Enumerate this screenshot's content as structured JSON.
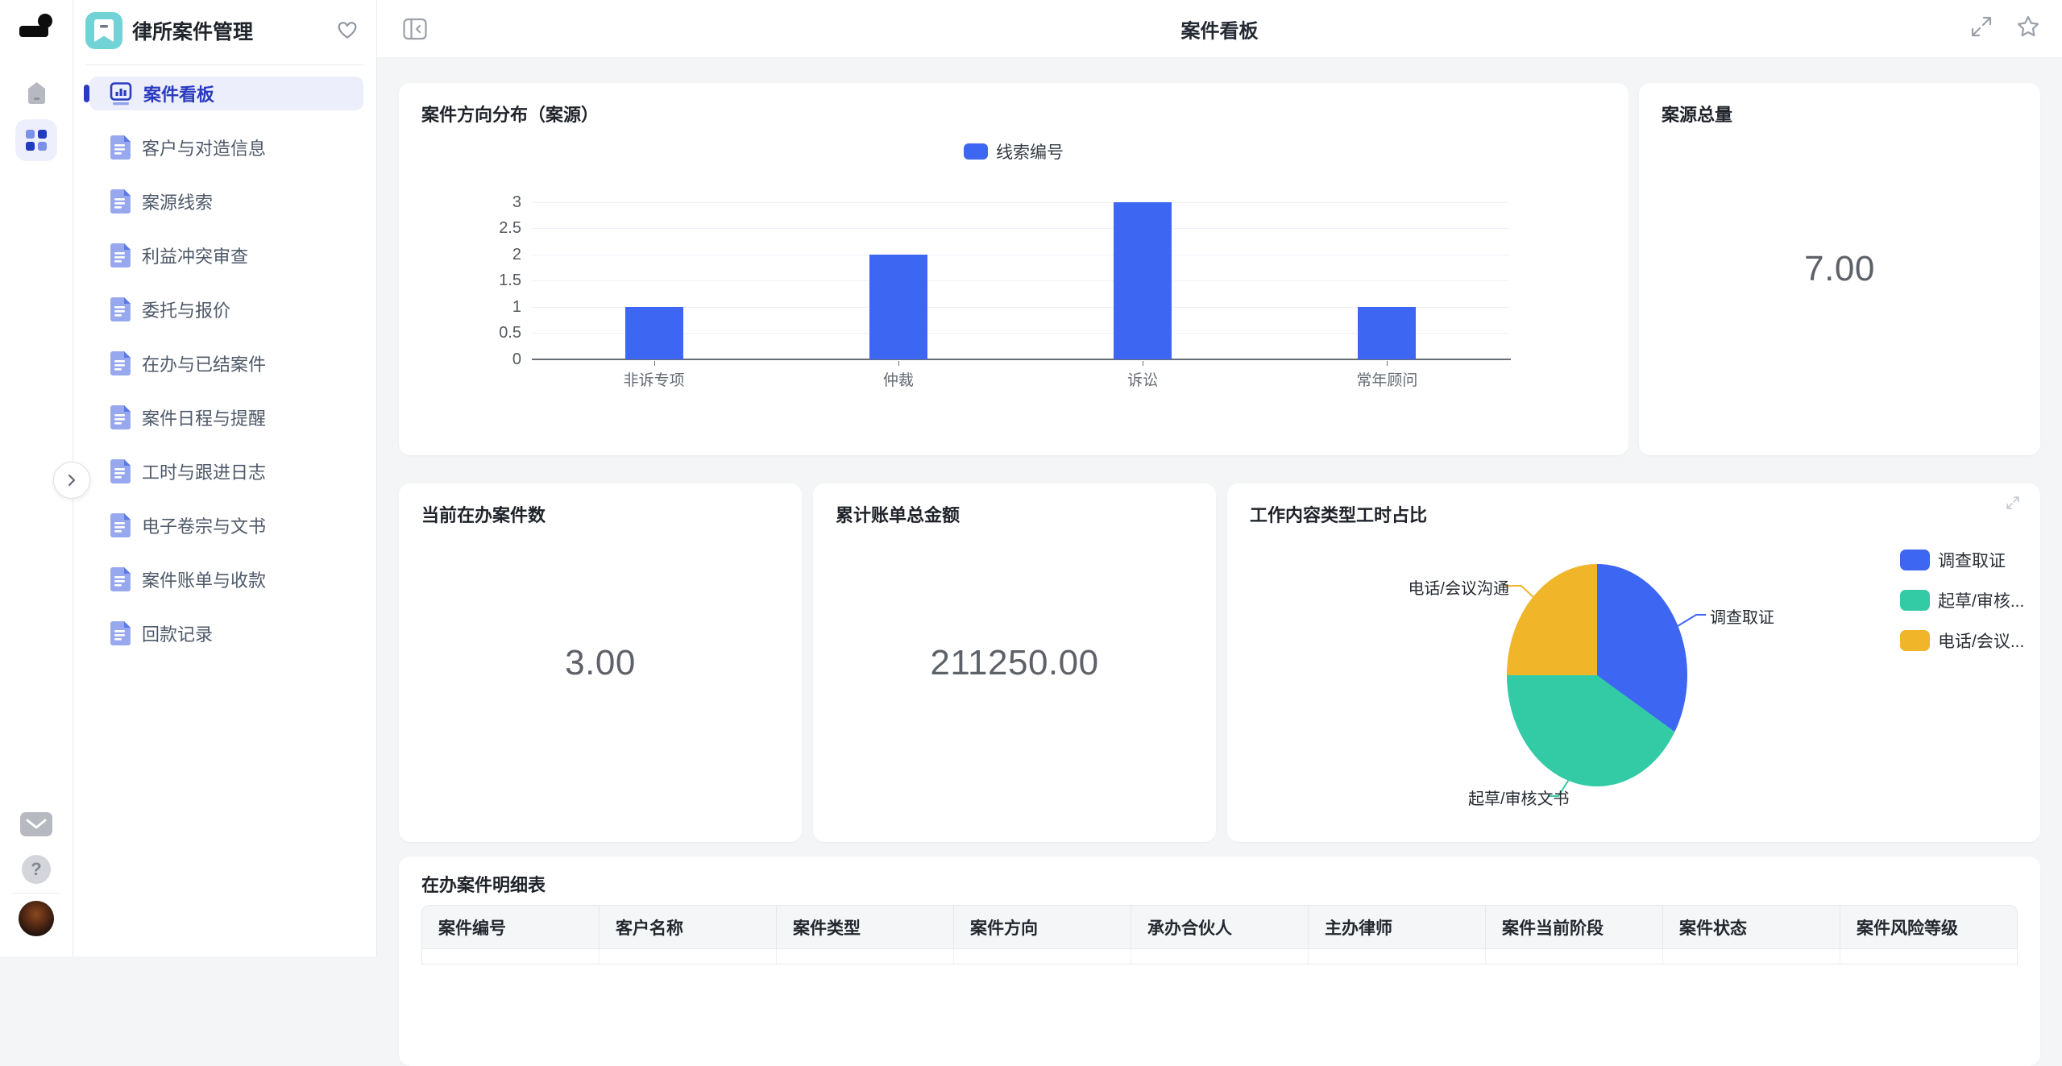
{
  "topbar": {
    "title": "案件看板",
    "icons": [
      "panel-collapse-icon",
      "fullscreen-icon",
      "star-icon"
    ]
  },
  "rail": {
    "icons": [
      "app-logo",
      "home-icon",
      "apps-grid-icon",
      "mail-icon",
      "help-icon",
      "avatar"
    ]
  },
  "sidebar": {
    "app_title": "律所案件管理",
    "header_icons": [
      "book-tag-icon",
      "heart-icon"
    ],
    "items": [
      {
        "label": "案件看板",
        "active": true,
        "icon": "dashboard-icon"
      },
      {
        "label": "客户与对造信息",
        "active": false,
        "icon": "doc-icon"
      },
      {
        "label": "案源线索",
        "active": false,
        "icon": "doc-icon"
      },
      {
        "label": "利益冲突审查",
        "active": false,
        "icon": "doc-icon"
      },
      {
        "label": "委托与报价",
        "active": false,
        "icon": "doc-icon"
      },
      {
        "label": "在办与已结案件",
        "active": false,
        "icon": "doc-icon"
      },
      {
        "label": "案件日程与提醒",
        "active": false,
        "icon": "doc-icon"
      },
      {
        "label": "工时与跟进日志",
        "active": false,
        "icon": "doc-icon"
      },
      {
        "label": "电子卷宗与文书",
        "active": false,
        "icon": "doc-icon"
      },
      {
        "label": "案件账单与收款",
        "active": false,
        "icon": "doc-icon"
      },
      {
        "label": "回款记录",
        "active": false,
        "icon": "doc-icon"
      }
    ]
  },
  "kpis": {
    "total_sources": {
      "title": "案源总量",
      "value": "7.00"
    },
    "active_cases": {
      "title": "当前在办案件数",
      "value": "3.00"
    },
    "billing_total": {
      "title": "累计账单总金额",
      "value": "211250.00"
    }
  },
  "bar_card": {
    "title": "案件方向分布（案源）",
    "yticks": [
      "3",
      "2.5",
      "2",
      "1.5",
      "1",
      "0.5",
      "0"
    ]
  },
  "pie_card": {
    "title": "工作内容类型工时占比",
    "legend_truncated": [
      "调查取证",
      "起草/审核...",
      "电话/会议..."
    ]
  },
  "table_card": {
    "title": "在办案件明细表",
    "columns": [
      "案件编号",
      "客户名称",
      "案件类型",
      "案件方向",
      "承办合伙人",
      "主办律师",
      "案件当前阶段",
      "案件状态",
      "案件风险等级"
    ]
  },
  "colors": {
    "primary_blue": "#3d66f2",
    "teal": "#32cba6",
    "yellow": "#f0b529",
    "active_nav": "#2a3bbf",
    "sidebar_app_icon": "#72d3d6"
  },
  "chart_data": [
    {
      "type": "bar",
      "title": "案件方向分布（案源）",
      "categories": [
        "非诉专项",
        "仲裁",
        "诉讼",
        "常年顾问"
      ],
      "series": [
        {
          "name": "线索编号",
          "values": [
            1,
            2,
            3,
            1
          ],
          "color": "#3d66f2"
        }
      ],
      "xlabel": "",
      "ylabel": "",
      "ylim": [
        0,
        3
      ],
      "ytick_step": 0.5,
      "grid": true,
      "legend_position": "top"
    },
    {
      "type": "pie",
      "title": "工作内容类型工时占比",
      "slices": [
        {
          "label": "调查取证",
          "pct": 35,
          "color": "#3d66f2"
        },
        {
          "label": "起草/审核文书",
          "pct": 40,
          "color": "#32cba6"
        },
        {
          "label": "电话/会议沟通",
          "pct": 25,
          "color": "#f0b529"
        }
      ],
      "legend_position": "right",
      "start_angle_deg": 0,
      "direction": "clockwise"
    }
  ]
}
